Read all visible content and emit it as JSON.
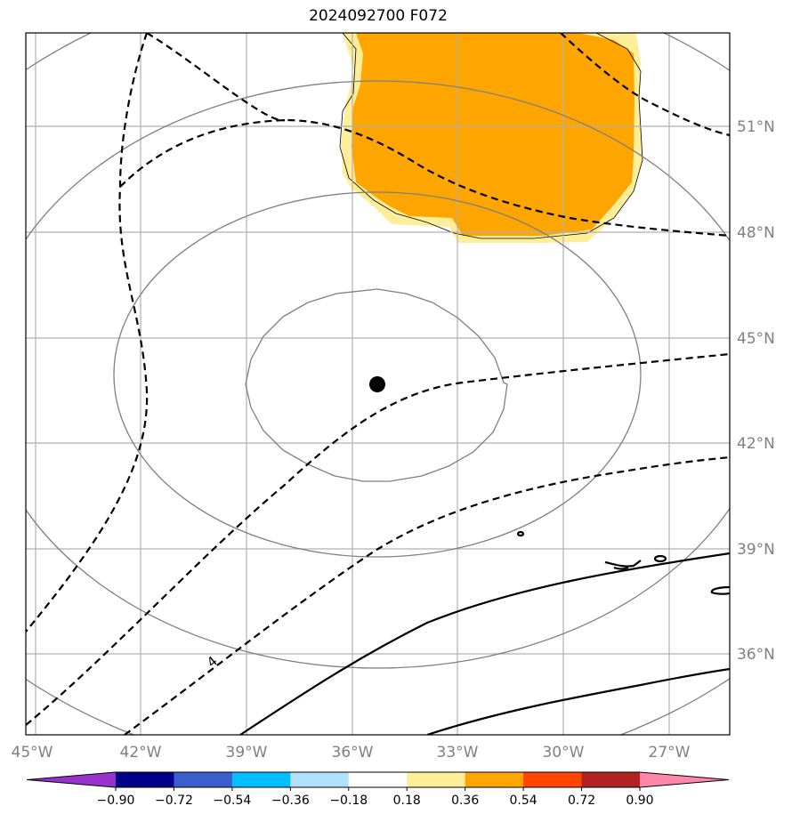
{
  "title": "2024092700 F072",
  "map": {
    "lon_labels": [
      "45°W",
      "42°W",
      "39°W",
      "36°W",
      "33°W",
      "30°W",
      "27°W"
    ],
    "lat_labels": [
      "51°N",
      "48°N",
      "45°N",
      "42°N",
      "39°N",
      "36°N"
    ],
    "storm_center": {
      "lon": -35.7,
      "lat": 43.7
    },
    "contour_label": "4",
    "shading_colors": {
      "light": "#ffee99",
      "mid": "#ffa500"
    }
  },
  "colorbar": {
    "colors": [
      "#9932cc",
      "#00008b",
      "#3a5fcd",
      "#00bfff",
      "#b0e2ff",
      "#ffffff",
      "#ffee99",
      "#ffa500",
      "#ff4500",
      "#b22222",
      "#ff88aa"
    ],
    "labels": [
      "−0.90",
      "−0.72",
      "−0.54",
      "−0.36",
      "−0.18",
      "0.18",
      "0.36",
      "0.54",
      "0.72",
      "0.90"
    ]
  }
}
